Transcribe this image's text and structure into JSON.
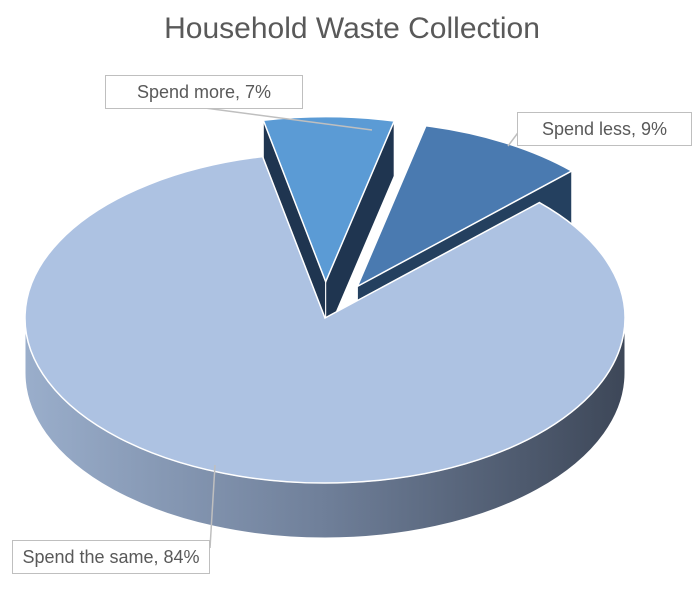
{
  "chart_data": {
    "type": "pie3d",
    "title": "Household Waste Collection",
    "categories": [
      "Spend more",
      "Spend less",
      "Spend the same"
    ],
    "values": [
      7,
      9,
      84
    ],
    "value_labels": [
      "Spend more, 7%",
      "Spend less, 9%",
      "Spend the same, 84%"
    ],
    "colors": [
      "#5b9bd5",
      "#4a7ab0",
      "#adc2e2"
    ]
  }
}
